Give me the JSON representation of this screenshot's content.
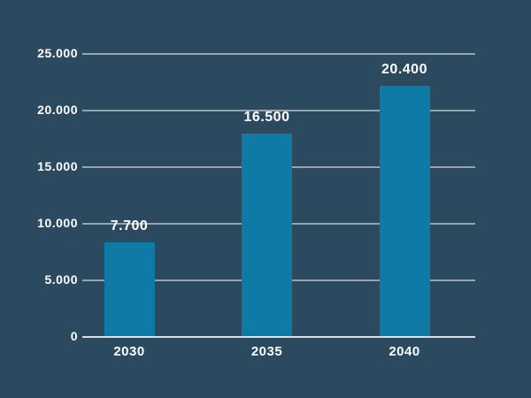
{
  "chart_data": {
    "type": "bar",
    "categories": [
      "2030",
      "2035",
      "2040"
    ],
    "values": [
      7700,
      16500,
      20400
    ],
    "value_labels": [
      "7.700",
      "16.500",
      "20.400"
    ],
    "y_tick_values": [
      0,
      5000,
      10000,
      15000,
      20000,
      25000
    ],
    "y_tick_labels": [
      "0",
      "5.000",
      "10.000",
      "15.000",
      "20.000",
      "25.000"
    ],
    "ylim": [
      0,
      25000
    ],
    "grid": true,
    "legend": false,
    "xlabel": "",
    "ylabel": ""
  },
  "colors": {
    "background": "#2c4a5f",
    "bar": "#0e7aa5",
    "gridline": "rgba(255,255,255,0.5)",
    "axis_line": "rgba(255,255,255,0.82)",
    "text": "#ffffff"
  }
}
